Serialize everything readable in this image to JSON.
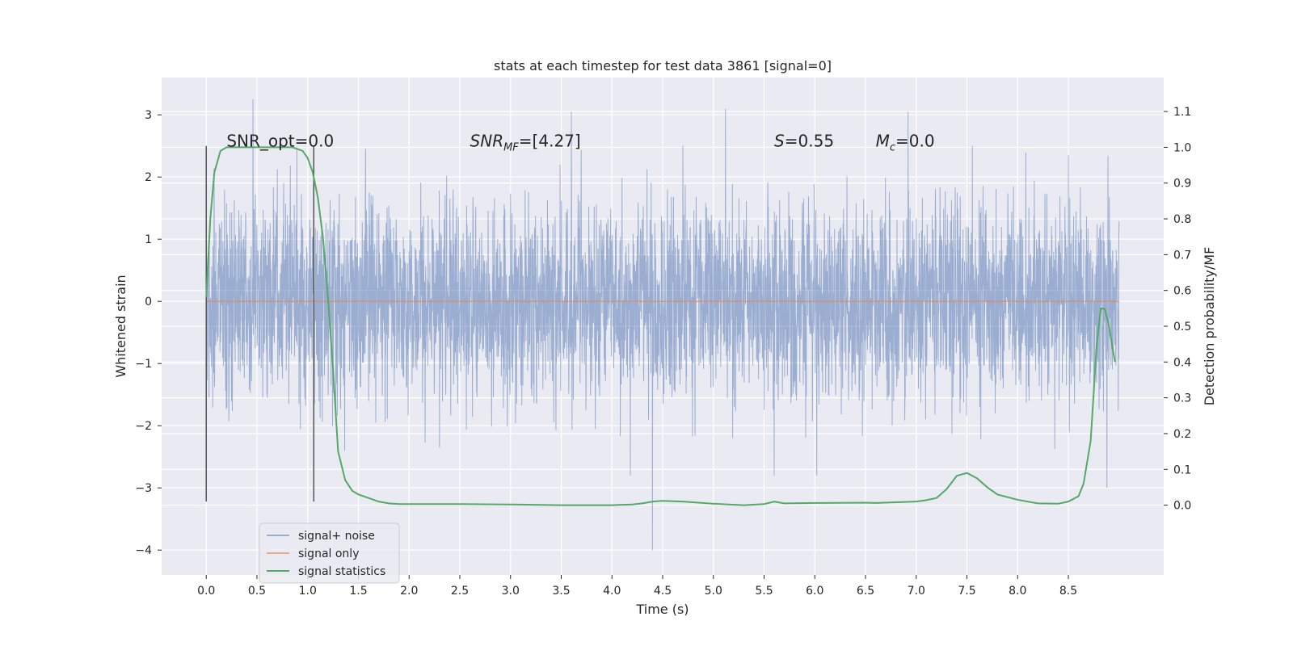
{
  "chart_data": {
    "type": "line",
    "title": "stats at each timestep for test data 3861 [signal=0]",
    "xlabel": "Time (s)",
    "ylabel": "Whitened strain",
    "y2label": "Detection probability/MF",
    "xlim": [
      -0.44,
      9.44
    ],
    "ylim": [
      -4.4,
      3.6
    ],
    "y2lim": [
      -0.195,
      1.195
    ],
    "xticks": [
      "0.0",
      "0.5",
      "1.0",
      "1.5",
      "2.0",
      "2.5",
      "3.0",
      "3.5",
      "4.0",
      "4.5",
      "5.0",
      "5.5",
      "6.0",
      "6.5",
      "7.0",
      "7.5",
      "8.0",
      "8.5"
    ],
    "yticks": [
      "3",
      "2",
      "1",
      "0",
      "−1",
      "−2",
      "−3",
      "−4"
    ],
    "y2ticks": [
      "1.1",
      "1.0",
      "0.9",
      "0.8",
      "0.7",
      "0.6",
      "0.5",
      "0.4",
      "0.3",
      "0.2",
      "0.1",
      "0.0"
    ],
    "grid": true,
    "legend_position": "lower-left",
    "series": [
      {
        "name": "signal+ noise",
        "color": "#4c72b0",
        "axis": "left",
        "x_range": [
          0.0,
          9.0
        ],
        "typical_band": [
          -0.95,
          0.95
        ],
        "extremes": [
          [
            0.46,
            3.25
          ],
          [
            1.57,
            2.45
          ],
          [
            3.6,
            3.05
          ],
          [
            4.4,
            -4.0
          ],
          [
            5.12,
            3.1
          ],
          [
            5.6,
            -2.8
          ],
          [
            6.02,
            -2.8
          ],
          [
            6.92,
            3.05
          ],
          [
            8.5,
            2.35
          ],
          [
            8.88,
            -3.0
          ],
          [
            4.18,
            -2.8
          ],
          [
            2.3,
            -2.35
          ]
        ]
      },
      {
        "name": "signal only",
        "color": "#dd8452",
        "axis": "left",
        "x": [
          0.0,
          9.0
        ],
        "y": [
          0.0,
          0.0
        ]
      },
      {
        "name": "signal statistics",
        "color": "#55a868",
        "axis": "right",
        "x": [
          0.0,
          0.04,
          0.08,
          0.14,
          0.2,
          0.3,
          0.45,
          0.6,
          0.75,
          0.85,
          0.95,
          1.0,
          1.05,
          1.1,
          1.15,
          1.2,
          1.25,
          1.3,
          1.37,
          1.44,
          1.5,
          1.6,
          1.7,
          1.8,
          1.9,
          2.0,
          2.5,
          3.0,
          3.5,
          4.0,
          4.2,
          4.3,
          4.4,
          4.5,
          4.7,
          4.8,
          5.0,
          5.3,
          5.5,
          5.6,
          5.7,
          6.0,
          6.5,
          6.6,
          6.8,
          7.0,
          7.1,
          7.2,
          7.3,
          7.4,
          7.5,
          7.6,
          7.7,
          7.8,
          8.0,
          8.2,
          8.4,
          8.5,
          8.6,
          8.65,
          8.72,
          8.78,
          8.82,
          8.86,
          8.9,
          8.96
        ],
        "y": [
          0.58,
          0.8,
          0.93,
          0.99,
          1.0,
          1.0,
          1.0,
          1.0,
          1.0,
          1.0,
          0.99,
          0.97,
          0.93,
          0.86,
          0.75,
          0.58,
          0.38,
          0.15,
          0.07,
          0.04,
          0.03,
          0.02,
          0.01,
          0.005,
          0.003,
          0.003,
          0.003,
          0.002,
          0.0,
          0.0,
          0.002,
          0.005,
          0.01,
          0.012,
          0.01,
          0.008,
          0.004,
          0.0,
          0.003,
          0.01,
          0.005,
          0.006,
          0.007,
          0.006,
          0.008,
          0.01,
          0.014,
          0.02,
          0.045,
          0.082,
          0.09,
          0.075,
          0.05,
          0.03,
          0.015,
          0.005,
          0.004,
          0.01,
          0.025,
          0.06,
          0.18,
          0.45,
          0.55,
          0.548,
          0.5,
          0.4
        ]
      }
    ],
    "vlines": [
      0.0,
      1.06
    ],
    "annotations": [
      {
        "text": "SNR_opt=0.0",
        "x": 0.2,
        "y2": 1.0
      },
      {
        "text": "SNR_MF=[4.27]",
        "x": 2.6,
        "y2": 1.0
      },
      {
        "text": "S=0.55",
        "x": 5.6,
        "y2": 1.0
      },
      {
        "text": "M_c=0.0",
        "x": 6.6,
        "y2": 1.0
      }
    ]
  }
}
